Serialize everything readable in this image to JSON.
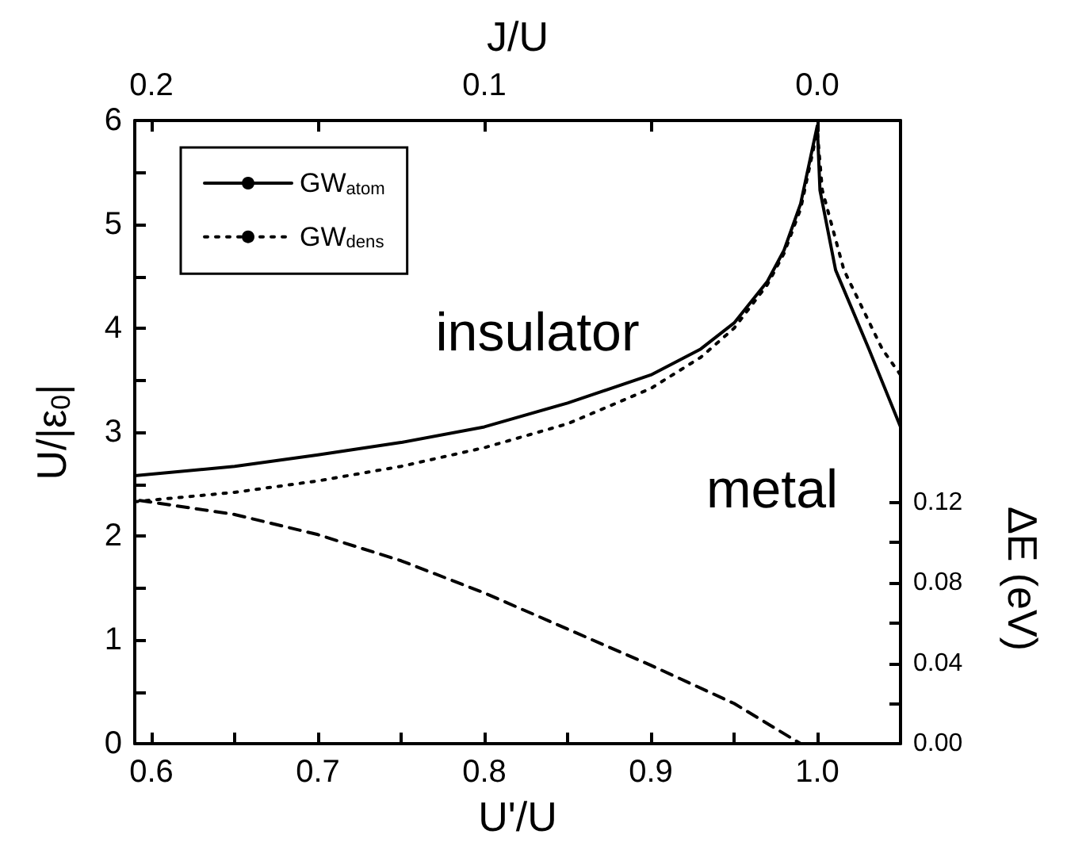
{
  "chart_data": {
    "type": "line",
    "xlabel": "U'/U",
    "ylabel": "U/|ε$_{0}$|",
    "x2label": "J/U",
    "y2label": "ΔE (eV)",
    "xlim": [
      0.59,
      1.05
    ],
    "xticks": [
      {
        "value": 0.6,
        "label": "0.6"
      },
      {
        "value": 0.65,
        "label": null
      },
      {
        "value": 0.7,
        "label": "0.7"
      },
      {
        "value": 0.75,
        "label": null
      },
      {
        "value": 0.8,
        "label": "0.8"
      },
      {
        "value": 0.85,
        "label": null
      },
      {
        "value": 0.9,
        "label": "0.9"
      },
      {
        "value": 0.95,
        "label": null
      },
      {
        "value": 1,
        "label": "1.0"
      }
    ],
    "x2lim": [
      0.205,
      -0.025
    ],
    "x2ticks": [
      {
        "value": 0.2,
        "label": "0.2"
      },
      {
        "value": 0.15,
        "label": null
      },
      {
        "value": 0.1,
        "label": "0.1"
      },
      {
        "value": 0.05,
        "label": null
      },
      {
        "value": 0,
        "label": "0.0"
      }
    ],
    "ylim": [
      0,
      6
    ],
    "yticks": [
      0,
      {
        "value": 0.5,
        "label": null
      },
      1,
      {
        "value": 1.5,
        "label": null
      },
      2,
      {
        "value": 2.5,
        "label": null
      },
      3,
      {
        "value": 3.5,
        "label": null
      },
      4,
      {
        "value": 4.5,
        "label": null
      },
      5,
      {
        "value": 5.5,
        "label": null
      },
      6
    ],
    "y2lim": [
      0,
      0.31
    ],
    "y2ticks": [
      {
        "value": 0,
        "label": "0.00"
      },
      {
        "value": 0.02,
        "label": null
      },
      0.04,
      {
        "value": 0.06,
        "label": null
      },
      0.08,
      {
        "value": 0.1,
        "label": null
      },
      0.12
    ],
    "grid": false,
    "legend": "top left",
    "marker": "none",
    "annotations": [
      "insulator",
      "metal"
    ],
    "series": [
      {
        "name": "GW$_{atom}$",
        "color": "#000000",
        "line_style": "solid",
        "x": [
          0.59,
          0.65,
          0.7,
          0.75,
          0.8,
          0.85,
          0.9,
          0.93,
          0.95,
          0.97,
          0.98,
          0.99,
          1.0,
          1.0016,
          1.011,
          1.031,
          1.05
        ],
        "values": [
          2.58,
          2.67,
          2.78,
          2.9,
          3.05,
          3.28,
          3.55,
          3.8,
          4.05,
          4.45,
          4.75,
          5.2,
          5.95,
          5.33,
          4.56,
          3.8,
          3.05
        ]
      },
      {
        "name": "GW$_{dens}$",
        "color": "#000000",
        "line_style": "dotted",
        "x": [
          0.59,
          0.65,
          0.7,
          0.75,
          0.8,
          0.85,
          0.9,
          0.93,
          0.95,
          0.97,
          0.98,
          0.99,
          1.0,
          1.003,
          1.016,
          1.039,
          1.05
        ],
        "values": [
          2.33,
          2.42,
          2.53,
          2.67,
          2.85,
          3.08,
          3.42,
          3.72,
          4.0,
          4.42,
          4.72,
          5.15,
          5.9,
          5.33,
          4.56,
          3.8,
          3.55
        ]
      },
      {
        "color": "#000000",
        "line_style": "dashed",
        "axis": "y2",
        "x": [
          0.593,
          0.65,
          0.7,
          0.75,
          0.8,
          0.85,
          0.9,
          0.95,
          0.99
        ],
        "values": [
          0.121,
          0.114,
          0.104,
          0.091,
          0.075,
          0.057,
          0.039,
          0.02,
          0
        ]
      }
    ]
  }
}
